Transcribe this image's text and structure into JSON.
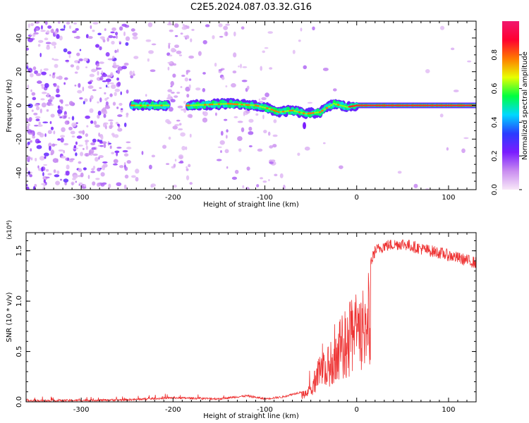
{
  "title": "C2E5.2024.087.03.32.G16",
  "chart_data": [
    {
      "type": "heatmap",
      "xlabel": "Height of straight line (km)",
      "ylabel": "Frequency (Hz)",
      "xlim": [
        -360,
        130
      ],
      "ylim": [
        -50,
        50
      ],
      "x_ticks": [
        -300,
        -200,
        -100,
        0,
        100
      ],
      "y_ticks": [
        -40,
        -20,
        0,
        20,
        40
      ],
      "colorbar": {
        "label": "Normalized spectral amplitude",
        "range": [
          0,
          1
        ],
        "ticks": [
          "0.0",
          "0.2",
          "0.4",
          "0.6",
          "0.8"
        ],
        "colors": [
          "#f8e8f8",
          "#c98cf0",
          "#7a1cff",
          "#2a3cff",
          "#00d8ff",
          "#00ff40",
          "#e8ff00",
          "#ff7a00",
          "#ff0030",
          "#f0186e"
        ]
      },
      "ridge": {
        "description_points_x": [
          -245,
          -210,
          -180,
          -140,
          -110,
          -95,
          -85,
          -70,
          -55,
          -40,
          -25,
          -10,
          0,
          50,
          130
        ],
        "description_points_y": [
          0,
          0,
          0,
          1,
          0,
          -2,
          -4,
          -3,
          -5,
          -4,
          1,
          -1,
          0,
          0,
          0
        ]
      }
    },
    {
      "type": "line",
      "xlabel": "Height of straight line (km)",
      "ylabel": "SNR (10 * v/v)",
      "scale_label": "(x10⁴)",
      "xlim": [
        -360,
        130
      ],
      "ylim": [
        0,
        1.68
      ],
      "x_ticks": [
        -300,
        -200,
        -100,
        0,
        100
      ],
      "y_ticks": [
        "0.0",
        "0.5",
        "1.0",
        "1.5"
      ],
      "y_tick_values": [
        0,
        0.5,
        1.0,
        1.5
      ],
      "series_color": "#ee3333",
      "envelope": {
        "x": [
          -360,
          -300,
          -250,
          -200,
          -150,
          -120,
          -100,
          -80,
          -60,
          -50,
          -40,
          -30,
          -20,
          -10,
          0,
          10,
          20,
          30,
          50,
          70,
          90,
          110,
          130
        ],
        "y": [
          0.01,
          0.015,
          0.02,
          0.04,
          0.03,
          0.06,
          0.03,
          0.05,
          0.1,
          0.18,
          0.5,
          0.55,
          0.8,
          0.95,
          1.12,
          1.25,
          1.5,
          1.55,
          1.57,
          1.52,
          1.48,
          1.43,
          1.38
        ]
      }
    }
  ]
}
